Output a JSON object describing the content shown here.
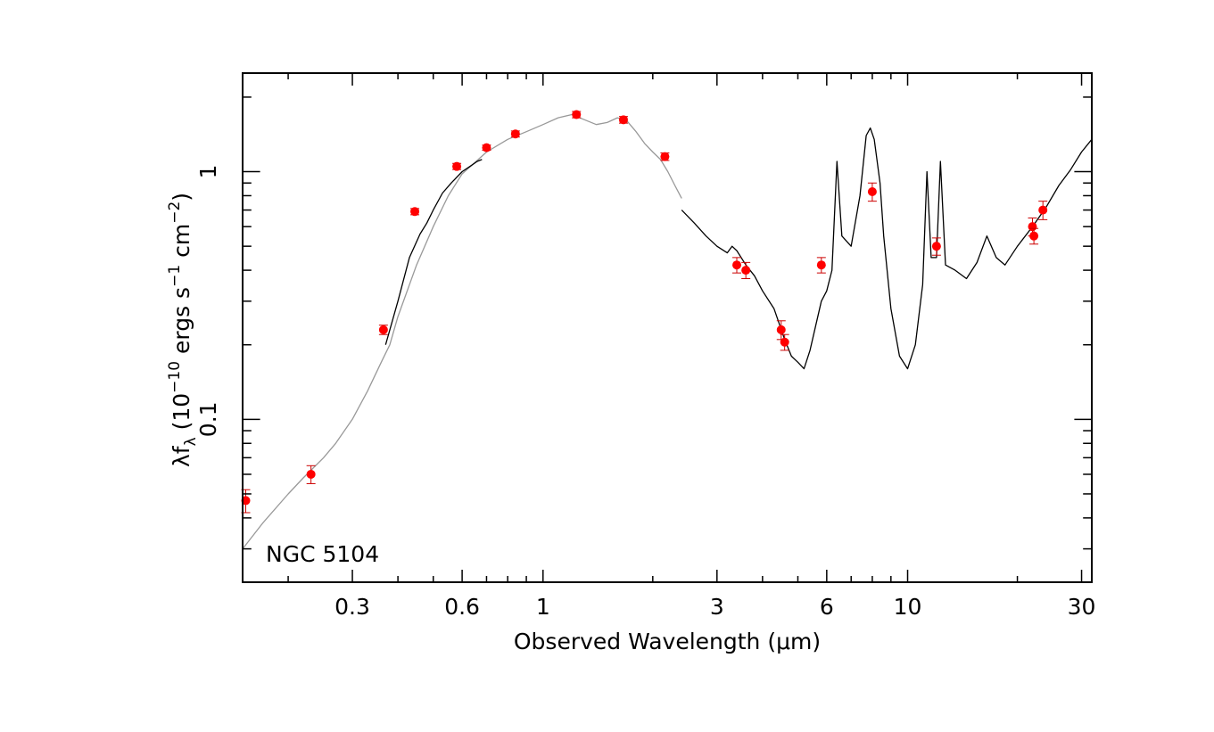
{
  "chart_data": {
    "type": "scatter",
    "title": "",
    "annotation": "NGC 5104",
    "xlabel": "Observed Wavelength (μm)",
    "ylabel": {
      "prefix": "λf",
      "sub": "λ",
      "mid1": " (10",
      "exp1": "−10",
      "mid2": " ergs s",
      "exp2": "−1",
      "mid3": " cm",
      "exp3": "−2",
      "end": ")"
    },
    "x_scale": "log",
    "y_scale": "log",
    "xlim": [
      0.15,
      32
    ],
    "ylim": [
      0.022,
      2.5
    ],
    "grid": false,
    "x_ticks": [
      {
        "value": 0.3,
        "label": "0.3"
      },
      {
        "value": 0.6,
        "label": "0.6"
      },
      {
        "value": 1,
        "label": "1"
      },
      {
        "value": 3,
        "label": "3"
      },
      {
        "value": 6,
        "label": "6"
      },
      {
        "value": 10,
        "label": "10"
      },
      {
        "value": 30,
        "label": "30"
      }
    ],
    "y_ticks": [
      {
        "value": 0.1,
        "label": "0.1"
      },
      {
        "value": 1,
        "label": "1"
      }
    ],
    "colors": {
      "points": "#ff0000",
      "errorbars": "#cc0000",
      "template": "#999999",
      "spectrum": "#000000"
    },
    "series": [
      {
        "kind": "model",
        "x": [
          0.15,
          0.17,
          0.2,
          0.22,
          0.25,
          0.27,
          0.3,
          0.33,
          0.36,
          0.38,
          0.4,
          0.45,
          0.5,
          0.55,
          0.6,
          0.7,
          0.8,
          0.9,
          1.0,
          1.1,
          1.2,
          1.3,
          1.4,
          1.5,
          1.6,
          1.7,
          1.8,
          1.9,
          2.0,
          2.1,
          2.2,
          2.3,
          2.4
        ],
        "y": [
          0.03,
          0.038,
          0.05,
          0.058,
          0.07,
          0.08,
          0.1,
          0.13,
          0.17,
          0.2,
          0.26,
          0.42,
          0.6,
          0.8,
          0.98,
          1.2,
          1.35,
          1.45,
          1.55,
          1.65,
          1.7,
          1.62,
          1.55,
          1.58,
          1.65,
          1.6,
          1.45,
          1.3,
          1.2,
          1.12,
          1.0,
          0.88,
          0.78
        ]
      },
      {
        "kind": "optical-spectrum",
        "x": [
          0.37,
          0.4,
          0.43,
          0.46,
          0.48,
          0.5,
          0.53,
          0.56,
          0.6,
          0.63,
          0.66,
          0.68
        ],
        "y": [
          0.2,
          0.3,
          0.45,
          0.56,
          0.62,
          0.7,
          0.82,
          0.9,
          1.0,
          1.05,
          1.1,
          1.12
        ]
      },
      {
        "kind": "ir-spectrum",
        "x": [
          2.4,
          2.6,
          2.8,
          3.0,
          3.2,
          3.3,
          3.4,
          3.6,
          3.8,
          4.0,
          4.3,
          4.6,
          4.8,
          5.0,
          5.2,
          5.4,
          5.6,
          5.8,
          6.0,
          6.2,
          6.4,
          6.6,
          7.0,
          7.4,
          7.7,
          7.9,
          8.1,
          8.4,
          8.6,
          9.0,
          9.5,
          10.0,
          10.5,
          11.0,
          11.3,
          11.6,
          12.0,
          12.3,
          12.7,
          13.5,
          14.5,
          15.5,
          16.5,
          17.5,
          18.5,
          20.0,
          22.0,
          24.0,
          26.0,
          28.0,
          30.0,
          32.0
        ],
        "y": [
          0.7,
          0.62,
          0.55,
          0.5,
          0.47,
          0.5,
          0.48,
          0.42,
          0.38,
          0.33,
          0.28,
          0.21,
          0.18,
          0.17,
          0.16,
          0.19,
          0.24,
          0.3,
          0.33,
          0.4,
          1.1,
          0.55,
          0.5,
          0.8,
          1.4,
          1.5,
          1.35,
          0.9,
          0.55,
          0.28,
          0.18,
          0.16,
          0.2,
          0.35,
          1.0,
          0.45,
          0.45,
          1.1,
          0.42,
          0.4,
          0.37,
          0.43,
          0.55,
          0.45,
          0.42,
          0.5,
          0.6,
          0.72,
          0.88,
          1.02,
          1.2,
          1.35
        ]
      },
      {
        "kind": "photometry",
        "points": [
          {
            "x": 0.153,
            "y": 0.047,
            "err": 0.005
          },
          {
            "x": 0.231,
            "y": 0.06,
            "err": 0.005
          },
          {
            "x": 0.365,
            "y": 0.23,
            "err": 0.01
          },
          {
            "x": 0.445,
            "y": 0.69,
            "err": 0.02
          },
          {
            "x": 0.58,
            "y": 1.05,
            "err": 0.03
          },
          {
            "x": 0.7,
            "y": 1.25,
            "err": 0.03
          },
          {
            "x": 0.84,
            "y": 1.42,
            "err": 0.04
          },
          {
            "x": 1.235,
            "y": 1.7,
            "err": 0.05
          },
          {
            "x": 1.662,
            "y": 1.62,
            "err": 0.05
          },
          {
            "x": 2.159,
            "y": 1.15,
            "err": 0.04
          },
          {
            "x": 3.4,
            "y": 0.42,
            "err": 0.03
          },
          {
            "x": 3.6,
            "y": 0.4,
            "err": 0.03
          },
          {
            "x": 4.5,
            "y": 0.23,
            "err": 0.02
          },
          {
            "x": 4.6,
            "y": 0.205,
            "err": 0.015
          },
          {
            "x": 5.8,
            "y": 0.42,
            "err": 0.03
          },
          {
            "x": 8.0,
            "y": 0.83,
            "err": 0.07
          },
          {
            "x": 12.0,
            "y": 0.5,
            "err": 0.04
          },
          {
            "x": 22.0,
            "y": 0.6,
            "err": 0.05
          },
          {
            "x": 22.2,
            "y": 0.55,
            "err": 0.04
          },
          {
            "x": 23.5,
            "y": 0.7,
            "err": 0.06
          }
        ]
      }
    ]
  }
}
